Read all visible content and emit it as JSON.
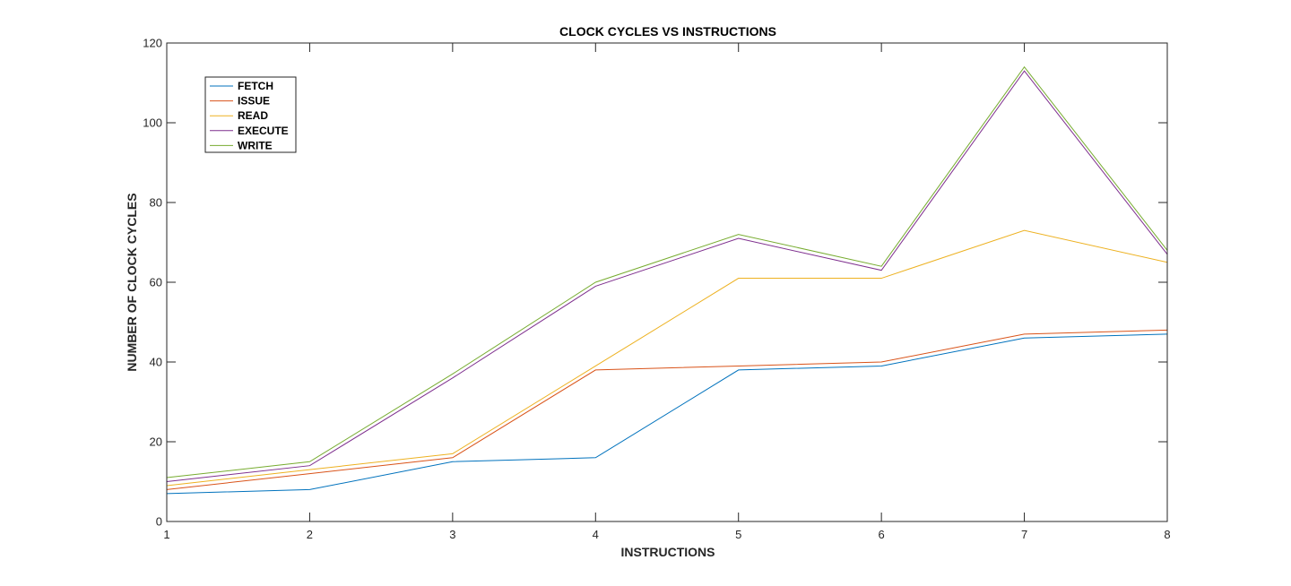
{
  "chart_data": {
    "type": "line",
    "title": "CLOCK CYCLES VS INSTRUCTIONS",
    "xlabel": "INSTRUCTIONS",
    "ylabel": "NUMBER OF CLOCK CYCLES",
    "x": [
      1,
      2,
      3,
      4,
      5,
      6,
      7,
      8
    ],
    "xlim": [
      1,
      8
    ],
    "ylim": [
      0,
      120
    ],
    "xticks": [
      "1",
      "2",
      "3",
      "4",
      "5",
      "6",
      "7",
      "8"
    ],
    "yticks": [
      "0",
      "20",
      "40",
      "60",
      "80",
      "100",
      "120"
    ],
    "grid": false,
    "legend_position": "top-left",
    "series": [
      {
        "name": "FETCH",
        "color": "#0072BD",
        "values": [
          7,
          8,
          15,
          16,
          38,
          39,
          46,
          47
        ]
      },
      {
        "name": "ISSUE",
        "color": "#D95319",
        "values": [
          8,
          12,
          16,
          38,
          39,
          40,
          47,
          48
        ]
      },
      {
        "name": "READ",
        "color": "#EDB120",
        "values": [
          9,
          13,
          17,
          39,
          61,
          61,
          73,
          65
        ]
      },
      {
        "name": "EXECUTE",
        "color": "#7E2F8E",
        "values": [
          10,
          14,
          36,
          59,
          71,
          63,
          113,
          67
        ]
      },
      {
        "name": "WRITE",
        "color": "#77AC30",
        "values": [
          11,
          15,
          37,
          60,
          72,
          64,
          114,
          68
        ]
      }
    ]
  }
}
